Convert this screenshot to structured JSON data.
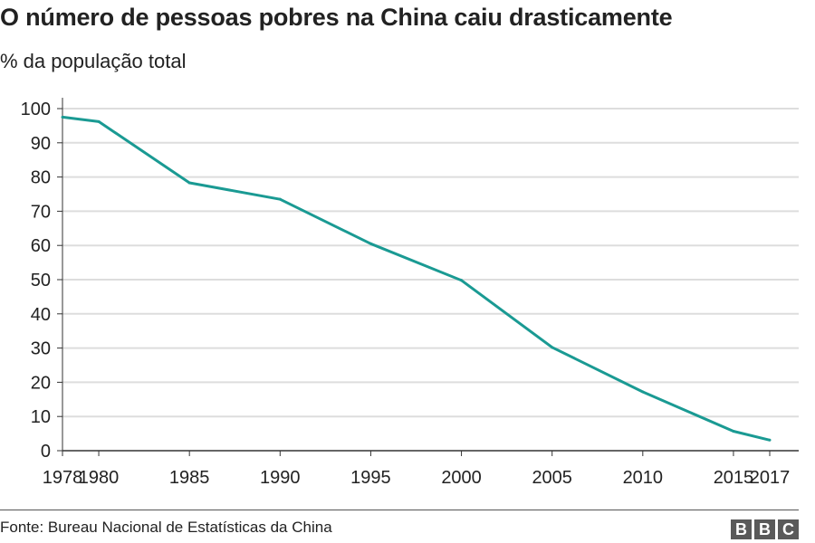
{
  "header": {
    "title": "O número de pessoas pobres na China caiu drasticamente",
    "subtitle": "% da população total"
  },
  "footer": {
    "source": "Fonte: Bureau Nacional de Estatísticas da China",
    "logo_letters": [
      "B",
      "B",
      "C"
    ]
  },
  "colors": {
    "line": "#1a9a93",
    "grid": "#dddddd",
    "axis": "#333333",
    "logo_bg": "#5a5a5a"
  },
  "chart_data": {
    "type": "line",
    "title": "O número de pessoas pobres na China caiu drasticamente",
    "subtitle": "% da população total",
    "xlabel": "",
    "ylabel": "",
    "x": [
      1978,
      1980,
      1985,
      1990,
      1995,
      2000,
      2005,
      2010,
      2015,
      2017
    ],
    "x_tick_labels": [
      "1978",
      "1980",
      "1985",
      "1990",
      "1995",
      "2000",
      "2005",
      "2010",
      "2015",
      "2017"
    ],
    "series": [
      {
        "values": [
          97.5,
          96.2,
          78.3,
          73.5,
          60.5,
          49.8,
          30.2,
          17.2,
          5.7,
          3.1
        ]
      }
    ],
    "y_ticks": [
      0,
      10,
      20,
      30,
      40,
      50,
      60,
      70,
      80,
      90,
      100
    ],
    "ylim": [
      0,
      100
    ],
    "grid": true,
    "legend": "none"
  }
}
